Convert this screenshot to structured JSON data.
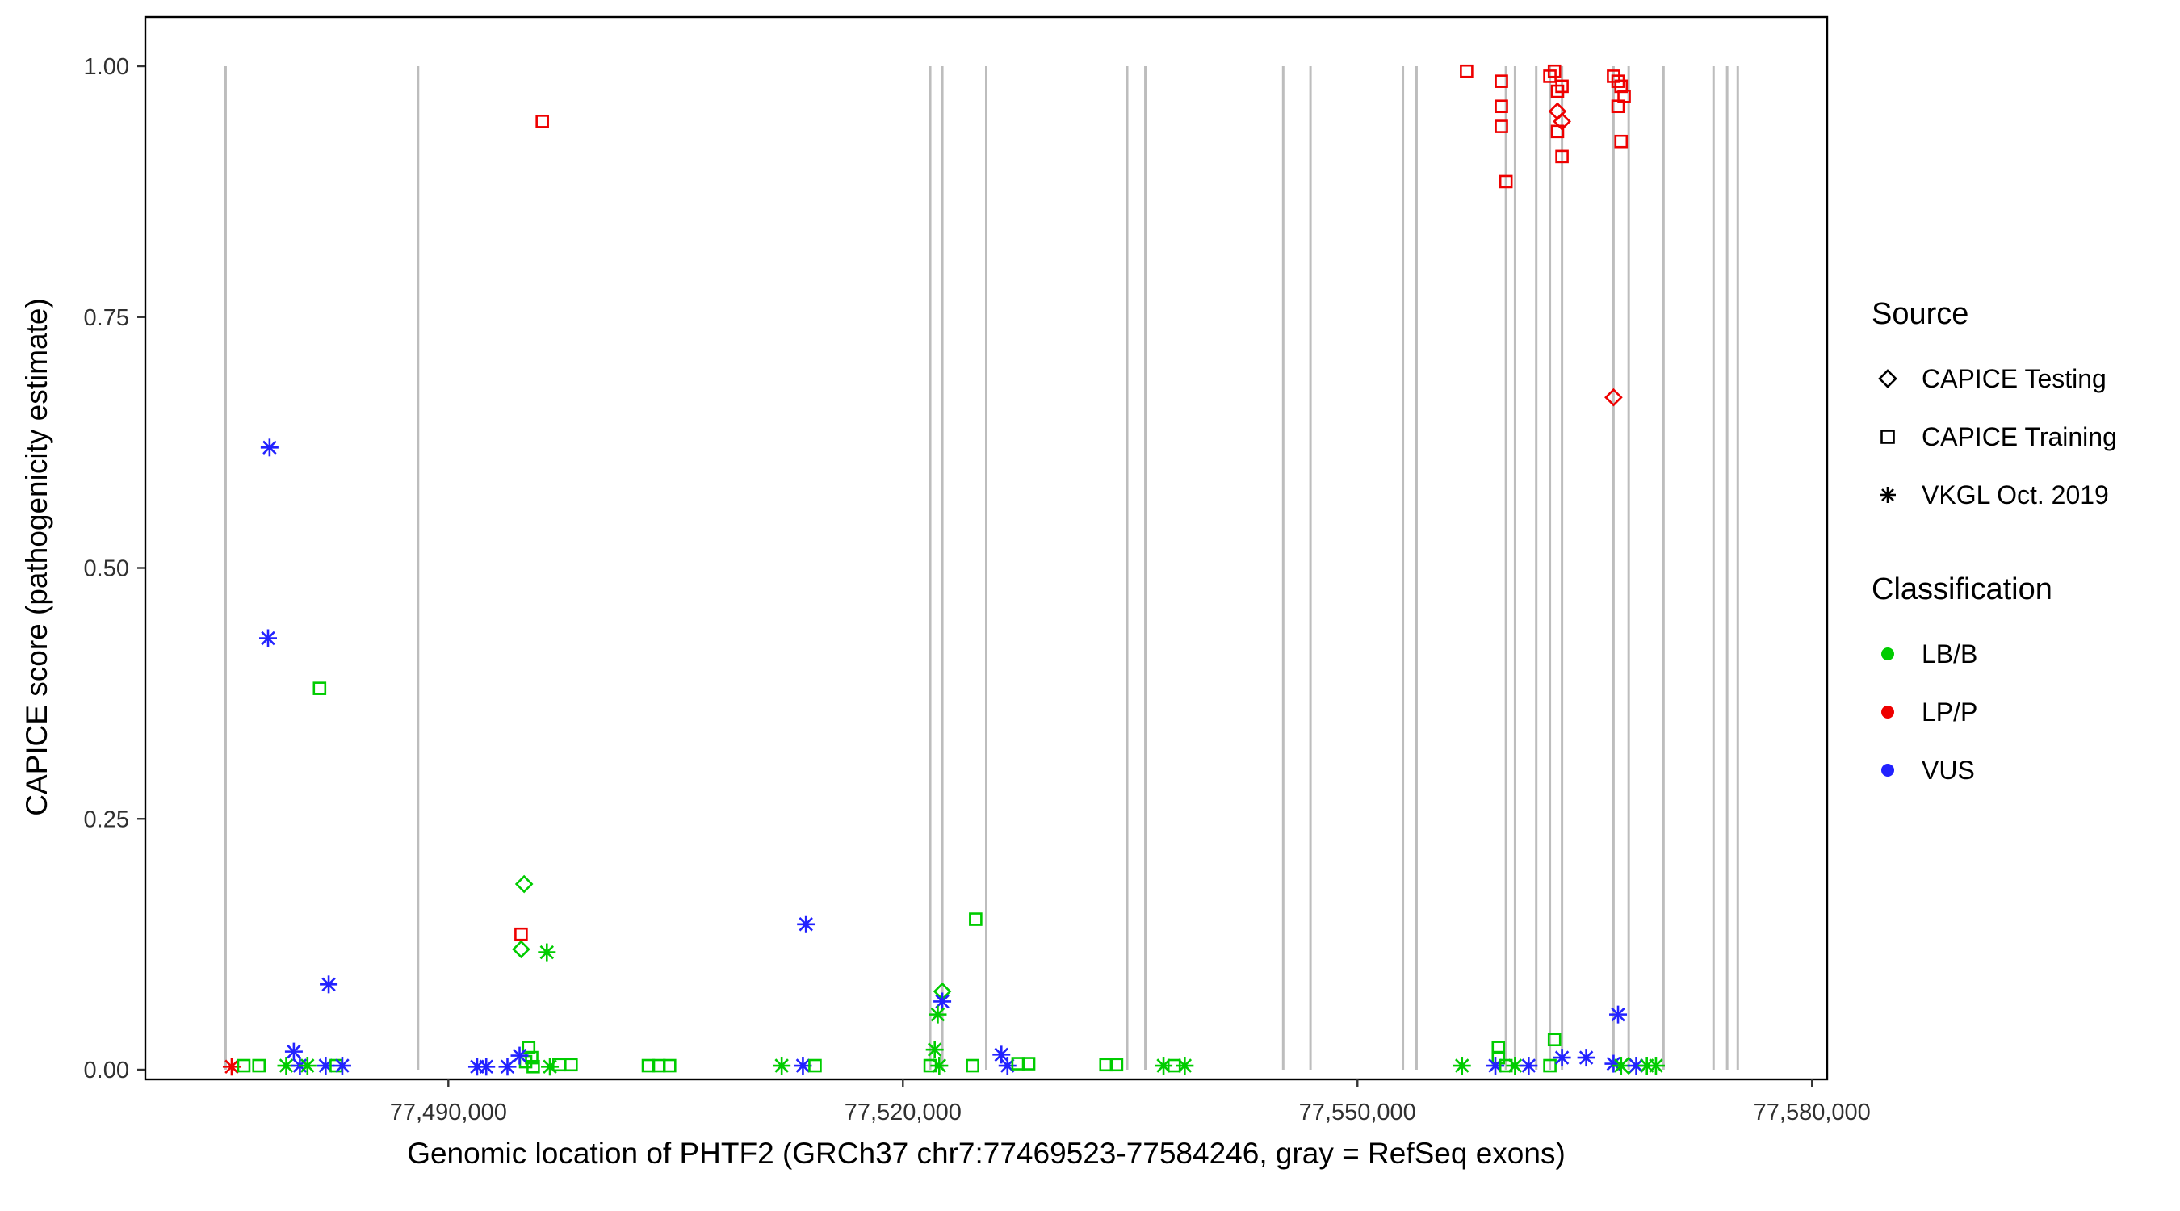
{
  "chart_data": {
    "type": "scatter",
    "xlabel": "Genomic location of PHTF2 (GRCh37 chr7:77469523-77584246, gray = RefSeq exons)",
    "ylabel": "CAPICE score (pathogenicity estimate)",
    "xlim": [
      77470000,
      77581000
    ],
    "ylim": [
      0,
      1
    ],
    "x_ticks": [
      {
        "value": 77490000,
        "label": "77,490,000"
      },
      {
        "value": 77520000,
        "label": "77,520,000"
      },
      {
        "value": 77550000,
        "label": "77,550,000"
      },
      {
        "value": 77580000,
        "label": "77,580,000"
      }
    ],
    "y_ticks": [
      {
        "value": 0.0,
        "label": "0.00"
      },
      {
        "value": 0.25,
        "label": "0.25"
      },
      {
        "value": 0.5,
        "label": "0.50"
      },
      {
        "value": 0.75,
        "label": "0.75"
      },
      {
        "value": 1.0,
        "label": "1.00"
      }
    ],
    "exon_color": "#BDBDBD",
    "exon_lines_x": [
      77475300,
      77488000,
      77521800,
      77522600,
      77525500,
      77534800,
      77536000,
      77545100,
      77546900,
      77553000,
      77553900,
      77559800,
      77560400,
      77561800,
      77562700,
      77563500,
      77566900,
      77567900,
      77570200,
      77573500,
      77574400,
      77575100
    ],
    "legend": {
      "source": {
        "title": "Source",
        "items": [
          {
            "label": "CAPICE Testing",
            "shape": "diamond"
          },
          {
            "label": "CAPICE Training",
            "shape": "square"
          },
          {
            "label": "VKGL Oct. 2019",
            "shape": "asterisk"
          }
        ]
      },
      "classification": {
        "title": "Classification",
        "items": [
          {
            "label": "LB/B",
            "color": "#00CC00"
          },
          {
            "label": "LP/P",
            "color": "#EE0000"
          },
          {
            "label": "VUS",
            "color": "#2222FF"
          }
        ]
      }
    },
    "colors_by_classification": {
      "LB/B": "#00CC00",
      "LP/P": "#EE0000",
      "VUS": "#2222FF"
    },
    "points_format": [
      "genomic_position",
      "capice_score",
      "source",
      "classification"
    ],
    "points": [
      [
        77475700,
        0.003,
        "vkgl",
        "LP/P"
      ],
      [
        77476500,
        0.004,
        "training",
        "LB/B"
      ],
      [
        77477500,
        0.004,
        "training",
        "LB/B"
      ],
      [
        77478200,
        0.62,
        "vkgl",
        "VUS"
      ],
      [
        77478100,
        0.43,
        "vkgl",
        "VUS"
      ],
      [
        77479300,
        0.004,
        "vkgl",
        "LB/B"
      ],
      [
        77479800,
        0.018,
        "vkgl",
        "VUS"
      ],
      [
        77480200,
        0.004,
        "vkgl",
        "VUS"
      ],
      [
        77480700,
        0.004,
        "vkgl",
        "LB/B"
      ],
      [
        77481500,
        0.38,
        "training",
        "LB/B"
      ],
      [
        77482100,
        0.085,
        "vkgl",
        "VUS"
      ],
      [
        77481900,
        0.004,
        "vkgl",
        "VUS"
      ],
      [
        77482600,
        0.004,
        "training",
        "LB/B"
      ],
      [
        77483000,
        0.004,
        "vkgl",
        "VUS"
      ],
      [
        77496200,
        0.945,
        "training",
        "LP/P"
      ],
      [
        77495000,
        0.185,
        "testing",
        "LB/B"
      ],
      [
        77494800,
        0.135,
        "training",
        "LP/P"
      ],
      [
        77494800,
        0.12,
        "testing",
        "LB/B"
      ],
      [
        77496500,
        0.117,
        "vkgl",
        "LB/B"
      ],
      [
        77495300,
        0.022,
        "training",
        "LB/B"
      ],
      [
        77495500,
        0.012,
        "training",
        "LB/B"
      ],
      [
        77495100,
        0.008,
        "training",
        "LB/B"
      ],
      [
        77494700,
        0.014,
        "vkgl",
        "VUS"
      ],
      [
        77493900,
        0.003,
        "vkgl",
        "VUS"
      ],
      [
        77492500,
        0.003,
        "vkgl",
        "VUS"
      ],
      [
        77491900,
        0.003,
        "vkgl",
        "VUS"
      ],
      [
        77496700,
        0.003,
        "vkgl",
        "LB/B"
      ],
      [
        77497300,
        0.005,
        "training",
        "LB/B"
      ],
      [
        77498100,
        0.005,
        "training",
        "LB/B"
      ],
      [
        77495600,
        0.003,
        "training",
        "LB/B"
      ],
      [
        77503200,
        0.004,
        "training",
        "LB/B"
      ],
      [
        77503900,
        0.004,
        "training",
        "LB/B"
      ],
      [
        77504600,
        0.004,
        "training",
        "LB/B"
      ],
      [
        77512000,
        0.004,
        "vkgl",
        "LB/B"
      ],
      [
        77513600,
        0.145,
        "vkgl",
        "VUS"
      ],
      [
        77513400,
        0.004,
        "vkgl",
        "VUS"
      ],
      [
        77514200,
        0.004,
        "training",
        "LB/B"
      ],
      [
        77521800,
        0.004,
        "training",
        "LB/B"
      ],
      [
        77522100,
        0.02,
        "vkgl",
        "LB/B"
      ],
      [
        77522400,
        0.004,
        "vkgl",
        "LB/B"
      ],
      [
        77522600,
        0.078,
        "testing",
        "LB/B"
      ],
      [
        77522600,
        0.068,
        "vkgl",
        "VUS"
      ],
      [
        77522300,
        0.055,
        "vkgl",
        "LB/B"
      ],
      [
        77524800,
        0.15,
        "training",
        "LB/B"
      ],
      [
        77524600,
        0.004,
        "training",
        "LB/B"
      ],
      [
        77526500,
        0.015,
        "vkgl",
        "VUS"
      ],
      [
        77526900,
        0.004,
        "vkgl",
        "VUS"
      ],
      [
        77527600,
        0.006,
        "training",
        "LB/B"
      ],
      [
        77528300,
        0.006,
        "training",
        "LB/B"
      ],
      [
        77533400,
        0.005,
        "training",
        "LB/B"
      ],
      [
        77534100,
        0.005,
        "training",
        "LB/B"
      ],
      [
        77537200,
        0.004,
        "vkgl",
        "LB/B"
      ],
      [
        77537900,
        0.004,
        "training",
        "LB/B"
      ],
      [
        77538600,
        0.004,
        "vkgl",
        "LB/B"
      ],
      [
        77556900,
        0.004,
        "vkgl",
        "LB/B"
      ],
      [
        77559300,
        0.022,
        "training",
        "LB/B"
      ],
      [
        77559300,
        0.012,
        "training",
        "LB/B"
      ],
      [
        77559100,
        0.004,
        "vkgl",
        "VUS"
      ],
      [
        77559800,
        0.004,
        "training",
        "LB/B"
      ],
      [
        77560400,
        0.004,
        "vkgl",
        "LB/B"
      ],
      [
        77561300,
        0.004,
        "vkgl",
        "VUS"
      ],
      [
        77563000,
        0.03,
        "training",
        "LB/B"
      ],
      [
        77562700,
        0.004,
        "training",
        "LB/B"
      ],
      [
        77563500,
        0.012,
        "vkgl",
        "VUS"
      ],
      [
        77565100,
        0.012,
        "vkgl",
        "VUS"
      ],
      [
        77567200,
        0.055,
        "vkgl",
        "VUS"
      ],
      [
        77566900,
        0.006,
        "vkgl",
        "VUS"
      ],
      [
        77567400,
        0.004,
        "vkgl",
        "LB/B"
      ],
      [
        77567900,
        0.004,
        "testing",
        "LB/B"
      ],
      [
        77568400,
        0.004,
        "vkgl",
        "VUS"
      ],
      [
        77569100,
        0.004,
        "vkgl",
        "LB/B"
      ],
      [
        77569700,
        0.004,
        "vkgl",
        "LB/B"
      ],
      [
        77557200,
        0.995,
        "training",
        "LP/P"
      ],
      [
        77559500,
        0.985,
        "training",
        "LP/P"
      ],
      [
        77559500,
        0.96,
        "training",
        "LP/P"
      ],
      [
        77559500,
        0.94,
        "training",
        "LP/P"
      ],
      [
        77559800,
        0.885,
        "training",
        "LP/P"
      ],
      [
        77562700,
        0.99,
        "training",
        "LP/P"
      ],
      [
        77563000,
        0.995,
        "training",
        "LP/P"
      ],
      [
        77563200,
        0.975,
        "training",
        "LP/P"
      ],
      [
        77563500,
        0.98,
        "training",
        "LP/P"
      ],
      [
        77563200,
        0.955,
        "testing",
        "LP/P"
      ],
      [
        77563500,
        0.945,
        "testing",
        "LP/P"
      ],
      [
        77563200,
        0.935,
        "training",
        "LP/P"
      ],
      [
        77563500,
        0.91,
        "training",
        "LP/P"
      ],
      [
        77566900,
        0.99,
        "training",
        "LP/P"
      ],
      [
        77567200,
        0.985,
        "training",
        "LP/P"
      ],
      [
        77567400,
        0.98,
        "training",
        "LP/P"
      ],
      [
        77567600,
        0.97,
        "training",
        "LP/P"
      ],
      [
        77567200,
        0.96,
        "training",
        "LP/P"
      ],
      [
        77567400,
        0.925,
        "training",
        "LP/P"
      ],
      [
        77566900,
        0.67,
        "testing",
        "LP/P"
      ]
    ]
  }
}
